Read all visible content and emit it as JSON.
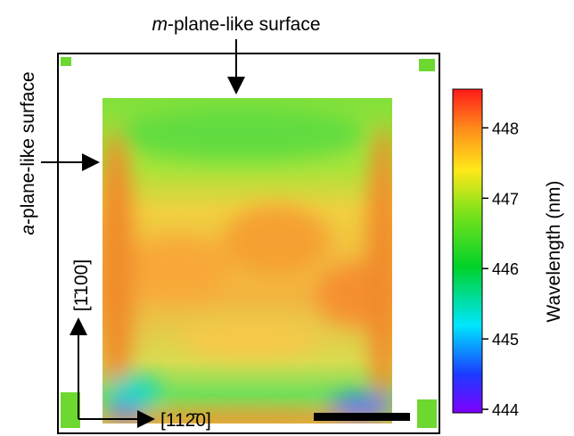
{
  "labels": {
    "top_italic": "m",
    "top_rest": "-plane-like surface",
    "side_italic": "a",
    "side_rest": "-plane-like surface",
    "dir_up": "[1̄100]",
    "dir_right": "[112̄0]"
  },
  "colorbar": {
    "label": "Wavelength (nm)",
    "lim": [
      443.95,
      448.55
    ],
    "ticks": [
      444,
      445,
      446,
      447,
      448
    ]
  }
}
